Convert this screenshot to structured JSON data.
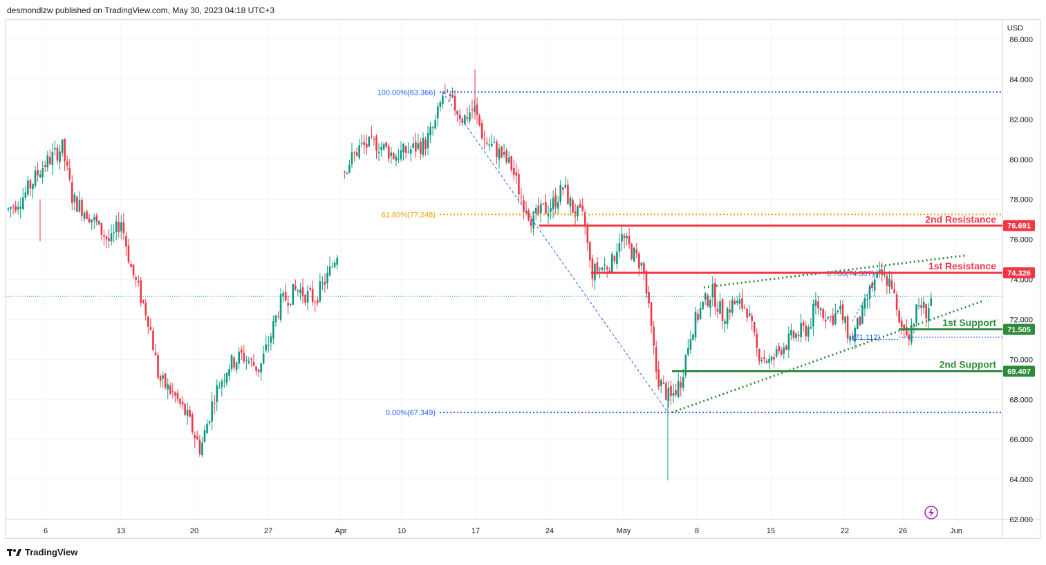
{
  "header": {
    "publisher": "desmondlzw published on TradingView.com, May 30, 2023 04:18 UTC+3"
  },
  "footer": {
    "brand": "TradingView"
  },
  "chart_data": {
    "type": "candlestick",
    "currency": "USD",
    "ylim": [
      62.0,
      86.0
    ],
    "y_ticks": [
      "86.000",
      "84.000",
      "82.000",
      "80.000",
      "78.000",
      "76.000",
      "74.000",
      "72.000",
      "70.000",
      "68.000",
      "66.000",
      "64.000",
      "62.000"
    ],
    "x_ticks": [
      "6",
      "13",
      "20",
      "27",
      "Apr",
      "10",
      "17",
      "24",
      "May",
      "8",
      "15",
      "22",
      "26",
      "Jun"
    ],
    "current_price_line": 73.15,
    "levels": [
      {
        "name": "2nd Resistance",
        "value": 76.691,
        "tag": "76.691",
        "color": "#f23645"
      },
      {
        "name": "1st Resistance",
        "value": 74.326,
        "tag": "74.326",
        "color": "#f23645"
      },
      {
        "name": "1st Support",
        "value": 71.505,
        "tag": "71.505",
        "color": "#2e8b3a"
      },
      {
        "name": "2nd Support",
        "value": 69.407,
        "tag": "69.407",
        "color": "#2e8b3a"
      }
    ],
    "fib": [
      {
        "label": "100.00%(83.366)",
        "value": 83.366,
        "color": "#2962ff"
      },
      {
        "label": "61.80%(77.248)",
        "value": 77.248,
        "color": "#f0a30a"
      },
      {
        "label": "0.00%(67.349)",
        "value": 67.349,
        "color": "#2962ff"
      }
    ],
    "fib_small": [
      {
        "label": "0.786(74.307)"
      },
      {
        "label": "(71.112)"
      }
    ],
    "trendline_upper": [
      [
        73.6
      ],
      [
        75.2
      ]
    ],
    "trendline_lower": [
      [
        67.35
      ],
      [
        72.9
      ]
    ],
    "colors": {
      "up": "#089981",
      "down": "#f23645",
      "grid": "#f0f3fa",
      "axis": "#131722"
    }
  }
}
